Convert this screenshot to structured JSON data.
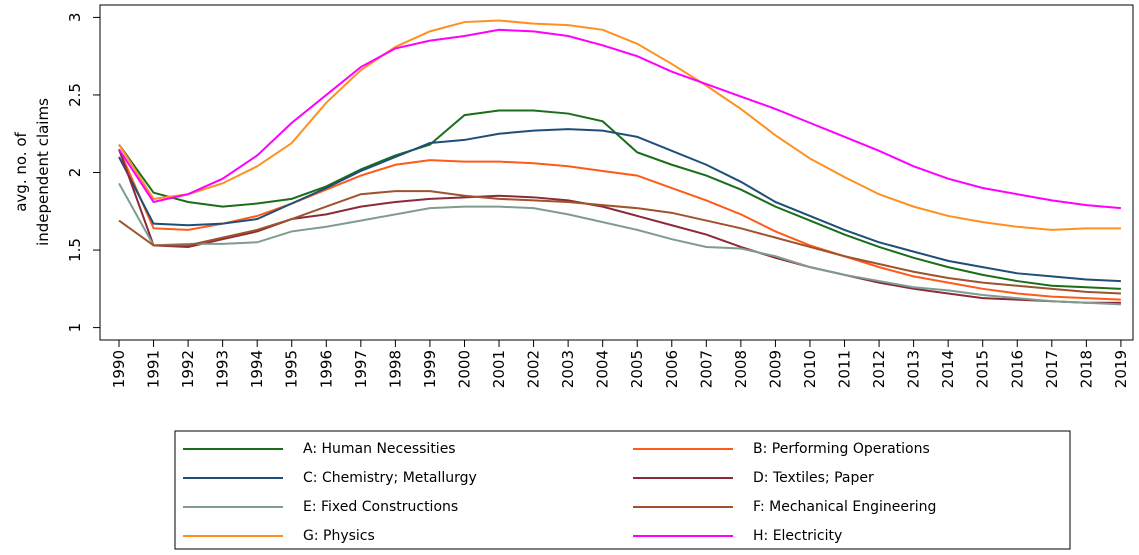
{
  "chart_data": {
    "type": "line",
    "ylabel": [
      "avg. no. of",
      "independent claims"
    ],
    "x": [
      1990,
      1991,
      1992,
      1993,
      1994,
      1995,
      1996,
      1997,
      1998,
      1999,
      2000,
      2001,
      2002,
      2003,
      2004,
      2005,
      2006,
      2007,
      2008,
      2009,
      2010,
      2011,
      2012,
      2013,
      2014,
      2015,
      2016,
      2017,
      2018,
      2019
    ],
    "xlim": [
      1989.45,
      2019.35
    ],
    "xticks": [
      1990,
      1991,
      1992,
      1993,
      1994,
      1995,
      1996,
      1997,
      1998,
      1999,
      2000,
      2001,
      2002,
      2003,
      2004,
      2005,
      2006,
      2007,
      2008,
      2009,
      2010,
      2011,
      2012,
      2013,
      2014,
      2015,
      2016,
      2017,
      2018,
      2019
    ],
    "ylim": [
      0.92,
      3.08
    ],
    "yticks": [
      1,
      1.5,
      2,
      2.5,
      3
    ],
    "legend": "bottom",
    "series": [
      {
        "name": "A: Human Necessities",
        "color": "#1a6e1a",
        "values": [
          2.18,
          1.87,
          1.81,
          1.78,
          1.8,
          1.83,
          1.91,
          2.02,
          2.11,
          2.18,
          2.37,
          2.4,
          2.4,
          2.38,
          2.33,
          2.13,
          2.05,
          1.98,
          1.89,
          1.78,
          1.69,
          1.6,
          1.52,
          1.45,
          1.39,
          1.34,
          1.3,
          1.27,
          1.26,
          1.25
        ]
      },
      {
        "name": "B: Performing Operations",
        "color": "#ff5a1a",
        "values": [
          2.15,
          1.64,
          1.63,
          1.67,
          1.72,
          1.8,
          1.89,
          1.98,
          2.05,
          2.08,
          2.07,
          2.07,
          2.06,
          2.04,
          2.01,
          1.98,
          1.9,
          1.82,
          1.73,
          1.62,
          1.53,
          1.46,
          1.39,
          1.33,
          1.29,
          1.25,
          1.22,
          1.2,
          1.19,
          1.18
        ]
      },
      {
        "name": "C: Chemistry; Metallurgy",
        "color": "#1f4e79",
        "values": [
          2.1,
          1.67,
          1.66,
          1.67,
          1.7,
          1.8,
          1.9,
          2.01,
          2.1,
          2.19,
          2.21,
          2.25,
          2.27,
          2.28,
          2.27,
          2.23,
          2.14,
          2.05,
          1.94,
          1.81,
          1.72,
          1.63,
          1.55,
          1.49,
          1.43,
          1.39,
          1.35,
          1.33,
          1.31,
          1.3
        ]
      },
      {
        "name": "D: Textiles; Paper",
        "color": "#8b2a3a",
        "values": [
          2.15,
          1.53,
          1.52,
          1.57,
          1.62,
          1.7,
          1.73,
          1.78,
          1.81,
          1.83,
          1.84,
          1.85,
          1.84,
          1.82,
          1.78,
          1.72,
          1.66,
          1.6,
          1.52,
          1.45,
          1.39,
          1.34,
          1.29,
          1.25,
          1.22,
          1.19,
          1.18,
          1.17,
          1.16,
          1.16
        ]
      },
      {
        "name": "E: Fixed Constructions",
        "color": "#7f9c8f",
        "values": [
          1.93,
          1.53,
          1.54,
          1.54,
          1.55,
          1.62,
          1.65,
          1.69,
          1.73,
          1.77,
          1.78,
          1.78,
          1.77,
          1.73,
          1.68,
          1.63,
          1.57,
          1.52,
          1.51,
          1.46,
          1.39,
          1.34,
          1.3,
          1.26,
          1.24,
          1.21,
          1.19,
          1.17,
          1.16,
          1.15
        ]
      },
      {
        "name": "F: Mechanical Engineering",
        "color": "#a0522d",
        "values": [
          1.69,
          1.53,
          1.53,
          1.58,
          1.63,
          1.7,
          1.78,
          1.86,
          1.88,
          1.88,
          1.85,
          1.83,
          1.82,
          1.81,
          1.79,
          1.77,
          1.74,
          1.69,
          1.64,
          1.58,
          1.52,
          1.46,
          1.41,
          1.36,
          1.32,
          1.29,
          1.27,
          1.25,
          1.23,
          1.22
        ]
      },
      {
        "name": "G: Physics",
        "color": "#ff9020",
        "values": [
          2.18,
          1.83,
          1.86,
          1.93,
          2.04,
          2.19,
          2.45,
          2.66,
          2.81,
          2.91,
          2.97,
          2.98,
          2.96,
          2.95,
          2.92,
          2.83,
          2.7,
          2.56,
          2.41,
          2.24,
          2.09,
          1.97,
          1.86,
          1.78,
          1.72,
          1.68,
          1.65,
          1.63,
          1.64,
          1.64
        ]
      },
      {
        "name": "H: Electricity",
        "color": "#ff00ff",
        "values": [
          2.15,
          1.81,
          1.86,
          1.96,
          2.11,
          2.32,
          2.5,
          2.68,
          2.8,
          2.85,
          2.88,
          2.92,
          2.91,
          2.88,
          2.82,
          2.75,
          2.65,
          2.57,
          2.49,
          2.41,
          2.32,
          2.23,
          2.14,
          2.04,
          1.96,
          1.9,
          1.86,
          1.82,
          1.79,
          1.77
        ]
      }
    ]
  }
}
